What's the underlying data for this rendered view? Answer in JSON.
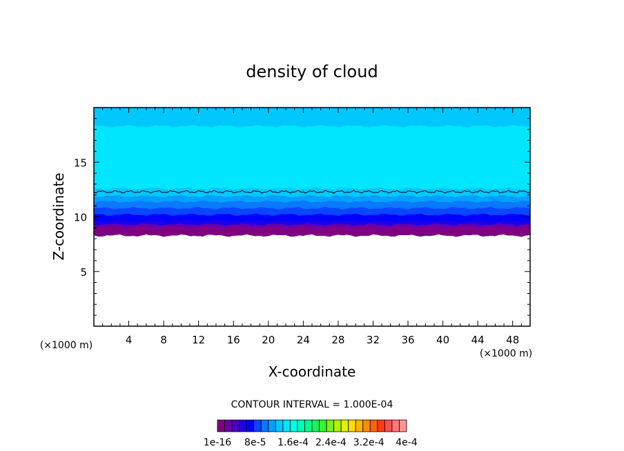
{
  "chart_data": {
    "type": "heatmap",
    "title": "density of cloud",
    "xlabel": "X-coordinate",
    "ylabel": "Z-coordinate",
    "x_unit_label": "(×1000 m)",
    "y_unit_label": "(×1000 m)",
    "xlim": [
      0,
      50
    ],
    "ylim": [
      0,
      20
    ],
    "x_ticks": [
      4,
      8,
      12,
      16,
      20,
      24,
      28,
      32,
      36,
      40,
      44,
      48
    ],
    "y_ticks": [
      5,
      10,
      15
    ],
    "contour_interval_label": "CONTOUR INTERVAL = 1.000E-04",
    "colorbar_labels": [
      "1e-16",
      "8e-5",
      "1.6e-4",
      "2.4e-4",
      "3.2e-4",
      "4e-4"
    ],
    "colorbar_colors": [
      "#800080",
      "#6a00a8",
      "#4b00c8",
      "#1e00e6",
      "#0000ff",
      "#0a46ff",
      "#0a78ff",
      "#00a0ff",
      "#00c8ff",
      "#00e6ff",
      "#00ffe6",
      "#00ffb4",
      "#00ff8c",
      "#14f55a",
      "#3cf032",
      "#78f01e",
      "#b4f00a",
      "#e6f000",
      "#ffdc00",
      "#ffb400",
      "#ff8c00",
      "#ff6400",
      "#ff3c14",
      "#ff5050",
      "#ff7878",
      "#ff9696"
    ],
    "layers": [
      {
        "color": "#800080",
        "top_z": 9.0
      },
      {
        "color": "#6a00a8",
        "top_z": 9.3
      },
      {
        "color": "#1e00e6",
        "top_z": 9.6
      },
      {
        "color": "#0000ff",
        "top_z": 10.2
      },
      {
        "color": "#0a46ff",
        "top_z": 10.8
      },
      {
        "color": "#0a78ff",
        "top_z": 11.4
      },
      {
        "color": "#00a0ff",
        "top_z": 11.9
      },
      {
        "color": "#00c8ff",
        "top_z": 12.6
      },
      {
        "color": "#00e6ff",
        "top_z": 18.3
      },
      {
        "color": "#00c8ff",
        "top_z": 20.0
      }
    ],
    "cloud_base_z": 8.3,
    "contour_line_z": 12.3
  }
}
